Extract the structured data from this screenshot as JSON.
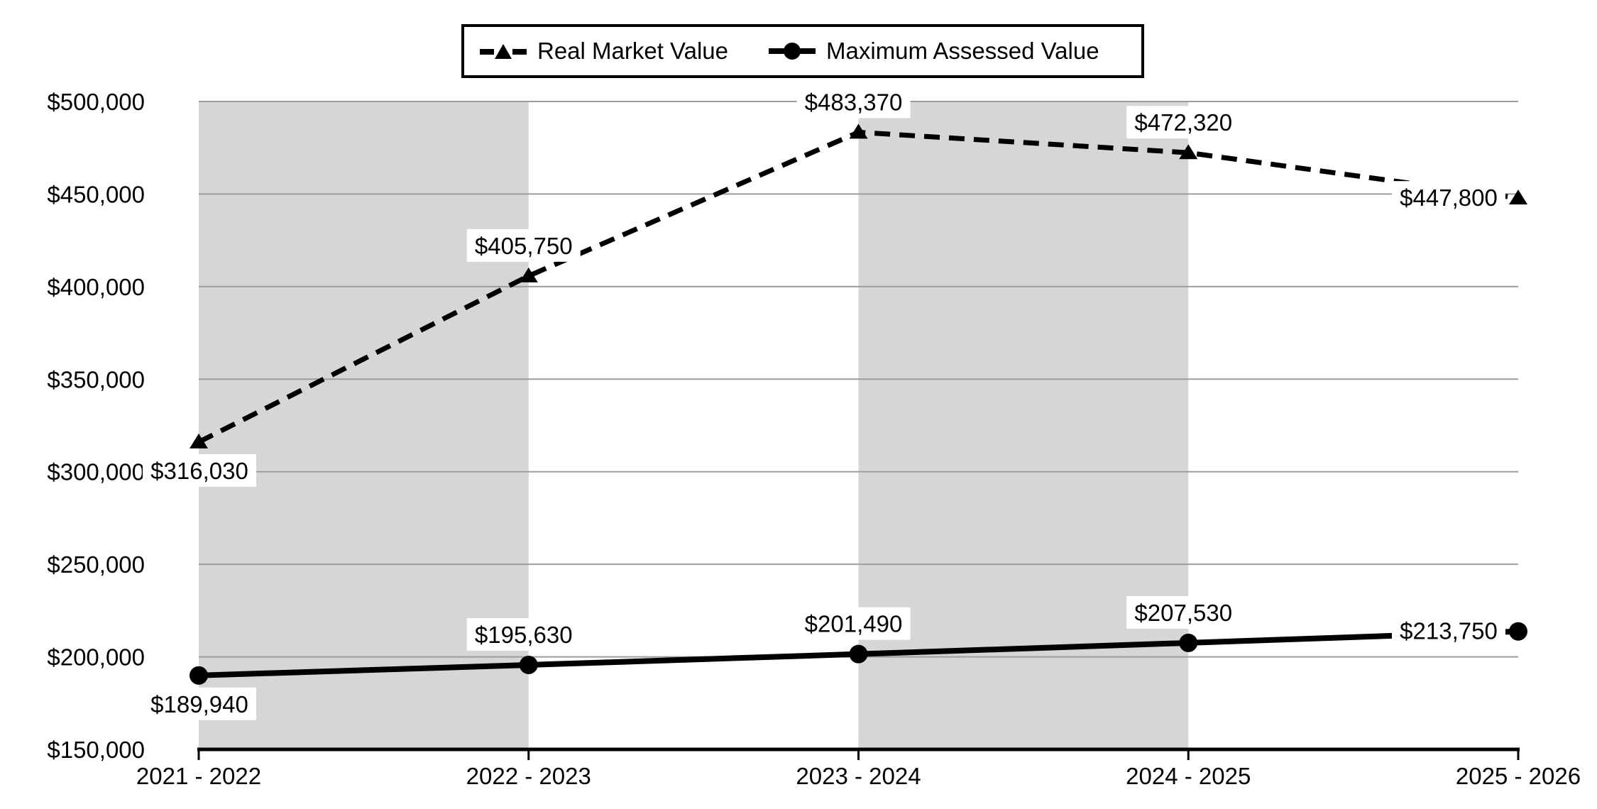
{
  "chart_data": {
    "type": "line",
    "title": "",
    "categories": [
      "2021 - 2022",
      "2022 - 2023",
      "2023 - 2024",
      "2024 - 2025",
      "2025 - 2026"
    ],
    "series": [
      {
        "name": "Real Market Value",
        "values": [
          316030,
          405750,
          483370,
          472320,
          447800
        ],
        "labels": [
          "$316,030",
          "$405,750",
          "$483,370",
          "$472,320",
          "$447,800"
        ],
        "label_placements": [
          "below",
          "above",
          "above",
          "above",
          "left"
        ],
        "line_style": "dashed",
        "marker": "triangle",
        "color": "#000000"
      },
      {
        "name": "Maximum Assessed Value",
        "values": [
          189940,
          195630,
          201490,
          207530,
          213750
        ],
        "labels": [
          "$189,940",
          "$195,630",
          "$201,490",
          "$207,530",
          "$213,750"
        ],
        "label_placements": [
          "below",
          "above",
          "above",
          "above",
          "left"
        ],
        "line_style": "solid",
        "marker": "circle",
        "color": "#000000"
      }
    ],
    "y_axis": {
      "min": 150000,
      "max": 500000,
      "step": 50000,
      "tick_labels_top_to_bottom": [
        "$500,000",
        "$450,000",
        "$400,000",
        "$350,000",
        "$300,000",
        "$250,000",
        "$200,000",
        "$150,000"
      ]
    },
    "x_axis": {
      "tick_labels": [
        "2021 - 2022",
        "2022 - 2023",
        "2023 - 2024",
        "2024 - 2025",
        "2025 - 2026"
      ]
    },
    "grid": true,
    "gridline_color": "#9d9d9d",
    "axis_color": "#000000",
    "plot_bands": {
      "color": "#d6d6d6",
      "band_category_spans": [
        [
          0,
          1
        ],
        [
          2,
          3
        ]
      ]
    },
    "legend_position": "top",
    "data_label_background": "#ffffff"
  },
  "legend": {
    "items": [
      {
        "label": "Real Market Value"
      },
      {
        "label": "Maximum Assessed Value"
      }
    ]
  }
}
